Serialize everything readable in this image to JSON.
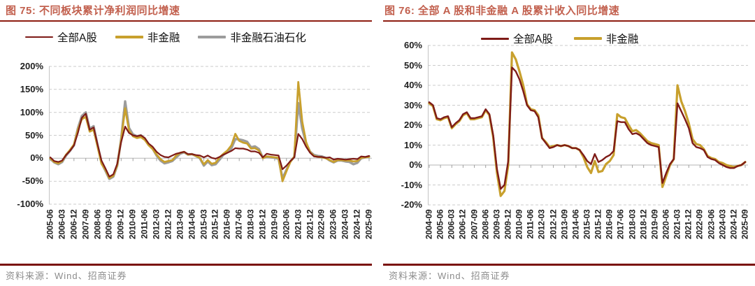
{
  "page": {
    "accent_color": "#8e1d12",
    "source_text": "资料来源：Wind、招商证券"
  },
  "chart_data": [
    {
      "type": "line",
      "title": "图 75: 不同板块累计净利润同比增速",
      "grid": "dashed-horizontal",
      "legend_position": "top",
      "ylim": [
        -100,
        200
      ],
      "yticks": [
        200,
        150,
        100,
        50,
        0,
        -50,
        -100
      ],
      "ytick_suffix": "%",
      "tick_step": 3,
      "x_tick_labels": [
        "2005-06",
        "2006-03",
        "2006-12",
        "2007-09",
        "2008-06",
        "2009-03",
        "2009-12",
        "2010-09",
        "2011-06",
        "2012-03",
        "2012-12",
        "2013-09",
        "2014-06",
        "2015-03",
        "2015-12",
        "2016-09",
        "2017-06",
        "2018-03",
        "2018-12",
        "2019-09",
        "2020-06",
        "2021-03",
        "2021-12",
        "2022-09",
        "2023-06",
        "2024-03",
        "2024-12",
        "2025-09"
      ],
      "series": [
        {
          "name": "全部A股",
          "color": "#7e1b17",
          "values": [
            2,
            -6,
            -8,
            -5,
            7,
            16,
            28,
            55,
            88,
            97,
            62,
            67,
            30,
            -5,
            -22,
            -40,
            -35,
            -12,
            35,
            69,
            55,
            50,
            48,
            50,
            44,
            32,
            25,
            14,
            7,
            3,
            2,
            6,
            10,
            12,
            14,
            9,
            9,
            7,
            6,
            2,
            6,
            1,
            -1,
            3,
            8,
            12,
            16,
            22,
            21,
            21,
            19,
            15,
            15,
            12,
            2,
            10,
            8,
            7,
            6,
            -24,
            -16,
            -6,
            2,
            53,
            42,
            25,
            12,
            4,
            3,
            3,
            1,
            2,
            -3,
            -1,
            -2,
            -3,
            -2,
            -1,
            -2,
            4,
            3,
            5
          ]
        },
        {
          "name": "非金融",
          "color": "#c8a02d",
          "values": [
            0,
            -8,
            -11,
            -6,
            8,
            18,
            30,
            62,
            85,
            90,
            58,
            62,
            25,
            -12,
            -25,
            -43,
            -38,
            -15,
            40,
            109,
            60,
            48,
            44,
            46,
            40,
            28,
            20,
            8,
            -2,
            -8,
            -6,
            -4,
            6,
            12,
            14,
            8,
            9,
            5,
            1,
            -13,
            -4,
            -12,
            -10,
            2,
            10,
            17,
            28,
            53,
            38,
            34,
            32,
            21,
            22,
            17,
            0,
            4,
            3,
            2,
            1,
            -50,
            -28,
            -8,
            4,
            166,
            80,
            35,
            13,
            5,
            3,
            2,
            0,
            -4,
            -8,
            -4,
            -4,
            -5,
            -5,
            -7,
            -6,
            1,
            2,
            3
          ]
        },
        {
          "name": "非金融石油石化",
          "color": "#9c9c9c",
          "values": [
            -1,
            -9,
            -13,
            -8,
            6,
            16,
            28,
            65,
            92,
            100,
            64,
            70,
            28,
            -10,
            -27,
            -45,
            -40,
            -16,
            42,
            124,
            66,
            52,
            48,
            50,
            43,
            30,
            21,
            6,
            -5,
            -11,
            -9,
            -6,
            2,
            10,
            13,
            8,
            9,
            5,
            0,
            -16,
            -7,
            -15,
            -13,
            -3,
            8,
            13,
            22,
            42,
            41,
            39,
            36,
            24,
            26,
            20,
            1,
            3,
            2,
            1,
            -1,
            -44,
            -25,
            -7,
            3,
            120,
            65,
            32,
            14,
            7,
            5,
            4,
            1,
            -5,
            -9,
            -5,
            -5,
            -7,
            -8,
            -13,
            -10,
            0,
            2,
            4
          ]
        }
      ]
    },
    {
      "type": "line",
      "title": "图 76: 全部 A 股和非金融 A 股累计收入同比增速",
      "grid": "dashed-horizontal",
      "legend_position": "top-overlay",
      "ylim": [
        -20,
        60
      ],
      "yticks": [
        60,
        50,
        40,
        30,
        20,
        10,
        0,
        -10,
        -20
      ],
      "ytick_suffix": "%",
      "tick_step": 3,
      "x_tick_labels": [
        "2004-09",
        "2005-06",
        "2006-03",
        "2006-12",
        "2007-09",
        "2008-06",
        "2009-03",
        "2009-12",
        "2010-09",
        "2011-06",
        "2012-03",
        "2012-12",
        "2013-09",
        "2014-06",
        "2015-03",
        "2015-12",
        "2016-09",
        "2017-06",
        "2018-03",
        "2018-12",
        "2019-09",
        "2020-06",
        "2021-03",
        "2021-12",
        "2022-09",
        "2023-06",
        "2024-03",
        "2024-12",
        "2025-09"
      ],
      "series": [
        {
          "name": "全部A股",
          "color": "#7e1b17",
          "values": [
            31.5,
            30,
            23.5,
            23,
            24,
            24.5,
            19,
            21,
            22.5,
            25.5,
            26.5,
            23.5,
            23.5,
            24,
            24.5,
            28,
            25.5,
            15,
            -2,
            -12,
            -10,
            2,
            49,
            47,
            43,
            37,
            30,
            27.5,
            27,
            24,
            13.5,
            11,
            8.5,
            9,
            10,
            9.5,
            10,
            9.5,
            8.5,
            8.5,
            7.5,
            5,
            2,
            0.5,
            5.5,
            1.5,
            2.5,
            4,
            5,
            7,
            22,
            21.5,
            21.5,
            18,
            15.5,
            16,
            15,
            13,
            11,
            10,
            9.5,
            9,
            -9,
            -4,
            0.5,
            3,
            31,
            27,
            23,
            18.5,
            11,
            9,
            8.5,
            7.5,
            4,
            3,
            2.5,
            1,
            0,
            -1,
            -1.5,
            -1.5,
            -0.5,
            0,
            1.5
          ]
        },
        {
          "name": "非金融",
          "color": "#c8a02d",
          "values": [
            31,
            29.5,
            23,
            22.5,
            23.5,
            24,
            18.5,
            20.5,
            22,
            25,
            26,
            23,
            23,
            23.5,
            24,
            27.5,
            25,
            14,
            -4,
            -15.5,
            -13,
            0,
            56.5,
            53,
            47,
            40,
            30.5,
            28,
            27.5,
            25,
            13.5,
            11.5,
            9,
            9.5,
            10,
            9.5,
            10,
            9.5,
            8.5,
            8.5,
            7.5,
            4,
            -1,
            -4,
            2,
            -3.5,
            -3,
            0.5,
            2,
            5,
            25.5,
            24,
            23.5,
            20,
            17,
            17.5,
            16,
            14,
            12,
            11,
            10.5,
            10,
            -11,
            -5.5,
            0,
            3,
            40,
            32,
            27,
            21,
            13,
            10.5,
            10,
            8,
            4.5,
            3.5,
            3,
            1.5,
            1,
            0,
            -0.5,
            -1,
            -0.5,
            0,
            1.5
          ]
        }
      ]
    }
  ]
}
